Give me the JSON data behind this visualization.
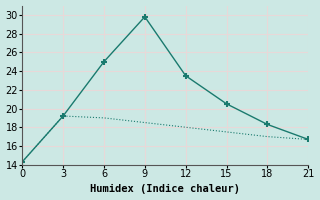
{
  "xlabel": "Humidex (Indice chaleur)",
  "background_color": "#cce8e4",
  "grid_color": "#d4e8e4",
  "line_color": "#1a7a6e",
  "x_ticks": [
    0,
    3,
    6,
    9,
    12,
    15,
    18,
    21
  ],
  "ylim": [
    14,
    31
  ],
  "xlim": [
    0,
    21
  ],
  "y_ticks": [
    14,
    16,
    18,
    20,
    22,
    24,
    26,
    28,
    30
  ],
  "series1_x": [
    0,
    3,
    6,
    9,
    12,
    15,
    18,
    21
  ],
  "series1_y": [
    14.3,
    19.2,
    25.0,
    29.8,
    23.5,
    20.5,
    18.3,
    16.7
  ],
  "series2_x": [
    0,
    3,
    6,
    9,
    12,
    15,
    18,
    21
  ],
  "series2_y": [
    14.3,
    19.2,
    19.0,
    18.5,
    18.0,
    17.5,
    17.0,
    16.7
  ]
}
